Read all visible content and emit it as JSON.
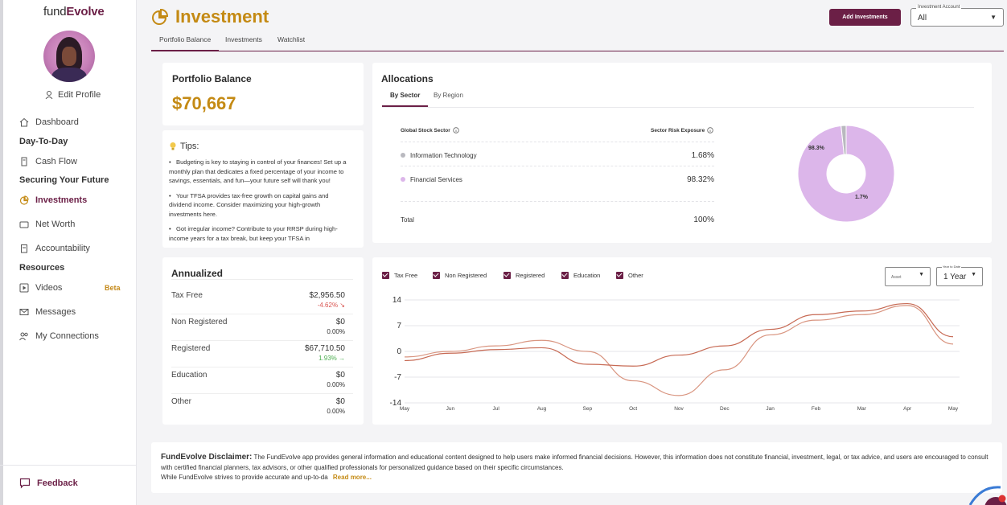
{
  "brand": {
    "logo_prefix": "fund",
    "logo_suffix": "Evolve"
  },
  "sidebar": {
    "edit_profile": "Edit Profile",
    "items": [
      {
        "label": "Dashboard",
        "icon": "house-icon"
      },
      {
        "label": "Cash Flow",
        "icon": "receipt-icon"
      },
      {
        "label": "Investments",
        "icon": "pie-icon"
      },
      {
        "label": "Net Worth",
        "icon": "wallet-icon"
      },
      {
        "label": "Accountability",
        "icon": "clipboard-icon"
      },
      {
        "label": "Videos",
        "icon": "play-icon"
      },
      {
        "label": "Messages",
        "icon": "mail-icon"
      },
      {
        "label": "My Connections",
        "icon": "people-icon"
      }
    ],
    "sections": [
      "Day-To-Day",
      "Securing Your Future",
      "Resources"
    ],
    "beta": "Beta",
    "feedback": "Feedback"
  },
  "header": {
    "title": "Investment",
    "add_button": "Add Investments",
    "account_label": "Investment Account",
    "account_value": "All",
    "tabs": [
      "Portfolio Balance",
      "Investments",
      "Watchlist"
    ]
  },
  "portfolio": {
    "title": "Portfolio Balance",
    "amount": "$70,667"
  },
  "tips": {
    "title": "Tips:",
    "items": [
      "Budgeting is key to staying in control of your finances! Set up a monthly plan that dedicates a fixed percentage of your income to savings, essentials, and fun—your future self will thank you!",
      "Your TFSA provides tax-free growth on capital gains and dividend income. Consider maximizing your high-growth investments here.",
      "Got irregular income? Contribute to your RRSP during high-income years for a tax break, but keep your TFSA in"
    ]
  },
  "allocations": {
    "title": "Allocations",
    "tabs": [
      "By Sector",
      "By Region"
    ],
    "col_left": "Global Stock Sector",
    "col_right": "Sector Risk Exposure",
    "rows": [
      {
        "name": "Information Technology",
        "pct": "1.68%"
      },
      {
        "name": "Financial Services",
        "pct": "98.32%"
      }
    ],
    "total_label": "Total",
    "total_value": "100%",
    "donut_labels": [
      "98.3%",
      "1.7%"
    ],
    "donut_values": [
      98.32,
      1.68
    ],
    "colors": {
      "large": "#dcb6ea",
      "small": "#b9b9bf"
    }
  },
  "annualized": {
    "title": "Annualized",
    "rows": [
      {
        "name": "Tax Free",
        "value": "$2,956.50",
        "change": "-4.62%",
        "trend": "down"
      },
      {
        "name": "Non Registered",
        "value": "$0",
        "change": "0.00%",
        "trend": "flat"
      },
      {
        "name": "Registered",
        "value": "$67,710.50",
        "change": "1.93%",
        "trend": "up"
      },
      {
        "name": "Education",
        "value": "$0",
        "change": "0.00%",
        "trend": "flat"
      },
      {
        "name": "Other",
        "value": "$0",
        "change": "0.00%",
        "trend": "flat"
      }
    ]
  },
  "chart_filters": {
    "legend": [
      "Tax Free",
      "Non Registered",
      "Registered",
      "Education",
      "Other"
    ],
    "asset_label": "Asset",
    "ytd_label": "Year to Date",
    "ytd_value": "1 Year"
  },
  "chart_data": {
    "type": "line",
    "x": [
      "May",
      "Jun",
      "Jul",
      "Aug",
      "Sep",
      "Oct",
      "Nov",
      "Dec",
      "Jan",
      "Feb",
      "Mar",
      "Apr",
      "May"
    ],
    "ylim": [
      -14,
      14
    ],
    "yticks": [
      14,
      7,
      0,
      -7,
      -14
    ],
    "series": [
      {
        "values": [
          -1.5,
          0,
          1.5,
          3.0,
          0,
          -8.0,
          -12.0,
          -5.0,
          4.5,
          8.5,
          10.0,
          12.5,
          2.0
        ]
      },
      {
        "values": [
          -2.5,
          -0.5,
          0.5,
          1.0,
          -3.5,
          -4.0,
          -1.0,
          1.5,
          6.0,
          10.0,
          11.0,
          13.0,
          4.0
        ]
      }
    ],
    "colors": [
      "#d99580",
      "#c76a54"
    ]
  },
  "disclaimer": {
    "title": "FundEvolve Disclaimer:",
    "text": "The FundEvolve app provides general information and educational content designed to help users make informed financial decisions. However, this information does not constitute financial, investment, legal, or tax advice, and users are encouraged to consult with certified financial planners, tax advisors, or other qualified professionals for personalized guidance based on their specific circumstances.",
    "text2": "While FundEvolve strives to provide accurate and up-to-da",
    "read_more": "Read more..."
  }
}
